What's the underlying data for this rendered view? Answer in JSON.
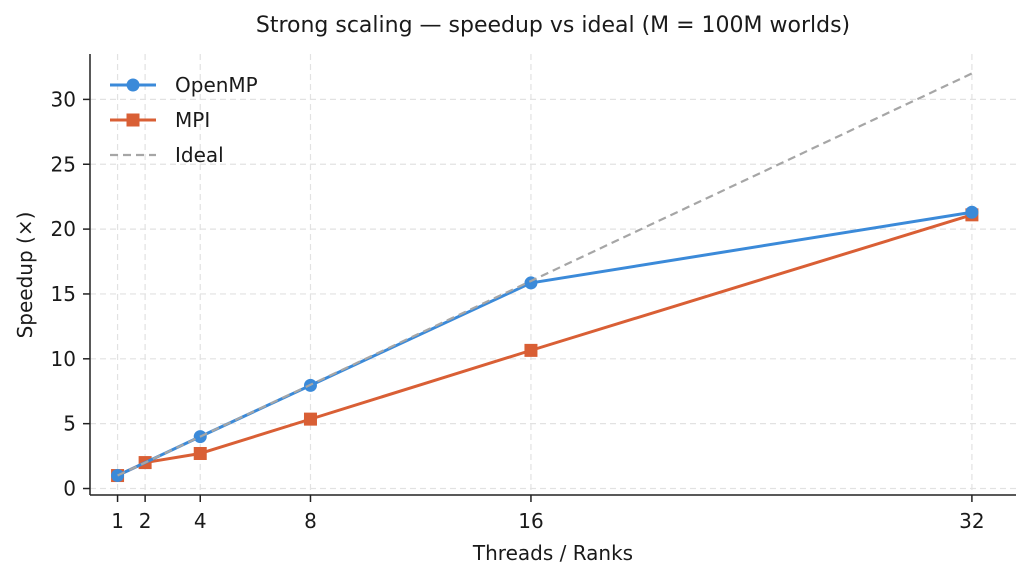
{
  "chart_data": {
    "type": "line",
    "title": "Strong scaling — speedup vs ideal  (M = 100M worlds)",
    "xlabel": "Threads / Ranks",
    "ylabel": "Speedup (×)",
    "x": [
      1,
      2,
      4,
      8,
      16,
      32
    ],
    "x_ticks": [
      1,
      2,
      4,
      8,
      16,
      32
    ],
    "y_ticks": [
      0,
      5,
      10,
      15,
      20,
      25,
      30
    ],
    "xlim": [
      0,
      33.6
    ],
    "ylim": [
      -0.5,
      33.5
    ],
    "grid": true,
    "legend_position": "top-left",
    "series": [
      {
        "name": "OpenMP",
        "x": [
          1,
          4,
          8,
          16,
          32
        ],
        "values": [
          1.0,
          4.0,
          7.95,
          15.85,
          21.3
        ],
        "color": "#3b8ad9",
        "marker": "circle",
        "style": "solid"
      },
      {
        "name": "MPI",
        "x": [
          1,
          2,
          4,
          8,
          16,
          32
        ],
        "values": [
          1.0,
          2.0,
          2.7,
          5.35,
          10.65,
          21.1
        ],
        "color": "#d95f35",
        "marker": "square",
        "style": "solid"
      },
      {
        "name": "Ideal",
        "x": [
          1,
          2,
          4,
          8,
          16,
          32
        ],
        "values": [
          1,
          2,
          4,
          8,
          16,
          32
        ],
        "color": "#a6a6a6",
        "marker": "none",
        "style": "dashed"
      }
    ]
  }
}
